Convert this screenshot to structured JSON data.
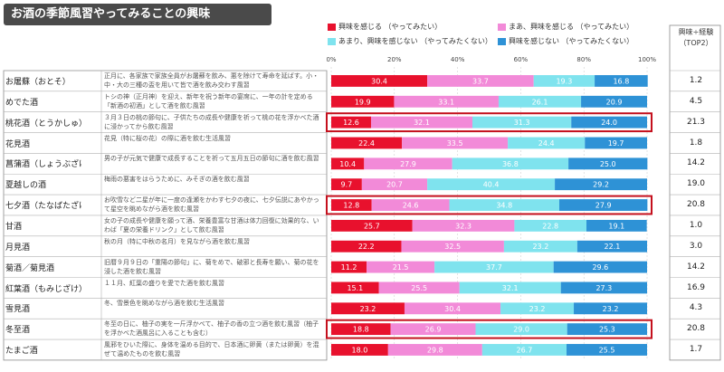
{
  "title": "お酒の季節風習やってみることの興味",
  "legend": [
    {
      "label": "興味を感じる （やってみたい）",
      "color": "#e8112d"
    },
    {
      "label": "まあ、興味を感じる （やってみたい）",
      "color": "#f28ad8"
    },
    {
      "label": "あまり、興味を感じない （やってみたくない）",
      "color": "#7fe3ee"
    },
    {
      "label": "興味を感じない （やってみたくない）",
      "color": "#2e92d6"
    }
  ],
  "right_column_header": [
    "興味÷経験",
    "（TOP2）"
  ],
  "chart_data": {
    "type": "bar",
    "orientation": "horizontal",
    "stacked": true,
    "xlim": [
      0,
      100
    ],
    "x_ticks": [
      "0%",
      "20%",
      "40%",
      "60%",
      "80%",
      "100%"
    ],
    "categories": [
      "お屠蘇（おとそ）",
      "めでた酒",
      "桃花酒（とうかしゅ）",
      "花見酒",
      "菖蒲酒（しょうぶざけ、あやめざけ）",
      "夏越しの酒",
      "七夕酒（たなばたざけ）",
      "甘酒",
      "月見酒",
      "菊酒／菊見酒",
      "紅葉酒（もみじざけ）",
      "雪見酒",
      "冬至酒",
      "たまご酒"
    ],
    "descriptions": [
      "正月に、各家族で家族全員がお屠蘇を飲み、悪を除けて寿命を延ばす。小・中・大の三種の盃を用いて皆で酒を飲み交わす風習",
      "トシの神（正月神）を迎え、新年を祝う新年の宴席に、一年の計を定める「新酒の初酒」として酒を飲む風習",
      "３月３日の桃の節句に、子供たちの成長や健康を祈って桃の花を浮かべた酒に浸かってから飲む風習",
      "花見（特に桜の花）の際に酒を飲む生活風習",
      "男の子が元気で健康で成長することを祈って五月五日の節句に酒を飲む風習",
      "梅雨の悪害をはらうために、みそぎの酒を飲む風習",
      "お吹雪など二星が年に一度の逢瀬をかわす七夕の夜に、七夕伝説にあやかって星空を眺めながら酒を飲む風習",
      "女の子の成長や健康を願って酒、栄養豊富な甘酒は体力回復に効果的な、いわば「夏の栄養ドリンク」として飲む風習",
      "秋の月（特に中秋の名月）を見ながら酒を飲む風習",
      "旧暦９月９日の「重陽の節句」に、菊をめで、破邪と長寿を願い、菊の花を浸した酒を飲む風習",
      "１１月、紅葉の盛りを愛でた酒を飲む風習",
      "冬、雪景色を眺めながら酒を飲む生活風習",
      "冬至の日に、柚子の実を一斤浮かべて、柚子の香の立つ酒を飲む風習（柚子を浮かべた酒風呂に入ることも含む）",
      "風邪をひいた際に、身体を温める目的で、日本酒に卵黄（または卵黄）を混ぜて温めたものを飲む風習"
    ],
    "series": [
      {
        "name": "興味を感じる （やってみたい）",
        "values": [
          30.4,
          19.9,
          12.6,
          22.4,
          10.4,
          9.7,
          12.8,
          25.7,
          22.2,
          11.2,
          15.1,
          23.2,
          18.8,
          18.0
        ]
      },
      {
        "name": "まあ、興味を感じる （やってみたい）",
        "values": [
          33.7,
          33.1,
          32.1,
          33.5,
          27.9,
          20.7,
          24.6,
          32.3,
          32.5,
          21.5,
          25.5,
          30.4,
          26.9,
          29.8
        ]
      },
      {
        "name": "あまり、興味を感じない （やってみたくない）",
        "values": [
          19.3,
          26.1,
          31.3,
          24.4,
          36.8,
          40.4,
          34.8,
          22.8,
          23.2,
          37.7,
          32.1,
          23.2,
          29.0,
          26.7
        ]
      },
      {
        "name": "興味を感じない （やってみたくない）",
        "values": [
          16.8,
          20.9,
          24.0,
          19.7,
          25.0,
          29.2,
          27.9,
          19.1,
          22.1,
          29.6,
          27.3,
          23.2,
          25.3,
          25.5
        ]
      }
    ],
    "top2_ratio": [
      "1.2",
      "4.5",
      "21.3",
      "1.8",
      "14.2",
      "19.0",
      "20.8",
      "1.0",
      "3.0",
      "14.2",
      "16.9",
      "4.3",
      "20.8",
      "1.7"
    ],
    "highlighted_rows": [
      "桃花酒（とうかしゅ）",
      "七夕酒（たなばたざけ）",
      "冬至酒"
    ]
  }
}
